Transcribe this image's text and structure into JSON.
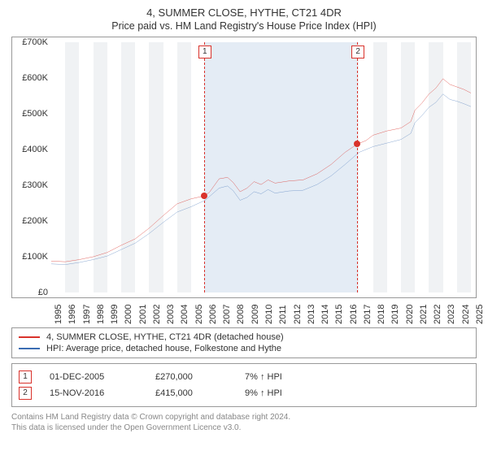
{
  "title": "4, SUMMER CLOSE, HYTHE, CT21 4DR",
  "subtitle": "Price paid vs. HM Land Registry's House Price Index (HPI)",
  "chart": {
    "type": "line",
    "background_color": "#ffffff",
    "grid_stripe_color": "#f0f2f4",
    "shade_color": "#e4ecf5",
    "ylim": [
      0,
      700000
    ],
    "ytick_step": 100000,
    "yticklabels": [
      "£0",
      "£100K",
      "£200K",
      "£300K",
      "£400K",
      "£500K",
      "£600K",
      "£700K"
    ],
    "x_years": [
      1995,
      1996,
      1997,
      1998,
      1999,
      2000,
      2001,
      2002,
      2003,
      2004,
      2005,
      2006,
      2007,
      2008,
      2009,
      2010,
      2011,
      2012,
      2013,
      2014,
      2015,
      2016,
      2017,
      2018,
      2019,
      2020,
      2021,
      2022,
      2023,
      2024,
      2025
    ],
    "xlim": [
      1995,
      2025
    ],
    "series": [
      {
        "name": "price_paid",
        "label": "4, SUMMER CLOSE, HYTHE, CT21 4DR (detached house)",
        "color": "#d9322b",
        "line_width": 1.5,
        "points": [
          [
            1995,
            88000
          ],
          [
            1996,
            86000
          ],
          [
            1997,
            92000
          ],
          [
            1998,
            100000
          ],
          [
            1999,
            112000
          ],
          [
            2000,
            132000
          ],
          [
            2001,
            150000
          ],
          [
            2002,
            180000
          ],
          [
            2003,
            215000
          ],
          [
            2004,
            248000
          ],
          [
            2005,
            262000
          ],
          [
            2005.92,
            270000
          ],
          [
            2006.3,
            280000
          ],
          [
            2007,
            318000
          ],
          [
            2007.6,
            322000
          ],
          [
            2008,
            308000
          ],
          [
            2008.5,
            282000
          ],
          [
            2009,
            292000
          ],
          [
            2009.5,
            310000
          ],
          [
            2010,
            302000
          ],
          [
            2010.5,
            315000
          ],
          [
            2011,
            306000
          ],
          [
            2012,
            312000
          ],
          [
            2013,
            315000
          ],
          [
            2014,
            332000
          ],
          [
            2015,
            358000
          ],
          [
            2016,
            392000
          ],
          [
            2016.87,
            415000
          ],
          [
            2017.5,
            425000
          ],
          [
            2018,
            440000
          ],
          [
            2019,
            452000
          ],
          [
            2020,
            460000
          ],
          [
            2020.7,
            478000
          ],
          [
            2021,
            510000
          ],
          [
            2021.5,
            530000
          ],
          [
            2022,
            555000
          ],
          [
            2022.5,
            572000
          ],
          [
            2023,
            598000
          ],
          [
            2023.5,
            582000
          ],
          [
            2024,
            575000
          ],
          [
            2024.5,
            568000
          ],
          [
            2025,
            558000
          ]
        ]
      },
      {
        "name": "hpi",
        "label": "HPI: Average price, detached house, Folkestone and Hythe",
        "color": "#3b6db3",
        "line_width": 1.2,
        "points": [
          [
            1995,
            80000
          ],
          [
            1996,
            78000
          ],
          [
            1997,
            84000
          ],
          [
            1998,
            92000
          ],
          [
            1999,
            102000
          ],
          [
            2000,
            120000
          ],
          [
            2001,
            138000
          ],
          [
            2002,
            165000
          ],
          [
            2003,
            196000
          ],
          [
            2004,
            225000
          ],
          [
            2005,
            240000
          ],
          [
            2006,
            258000
          ],
          [
            2007,
            292000
          ],
          [
            2007.6,
            298000
          ],
          [
            2008,
            285000
          ],
          [
            2008.5,
            258000
          ],
          [
            2009,
            266000
          ],
          [
            2009.5,
            282000
          ],
          [
            2010,
            276000
          ],
          [
            2010.5,
            288000
          ],
          [
            2011,
            278000
          ],
          [
            2012,
            284000
          ],
          [
            2013,
            286000
          ],
          [
            2014,
            302000
          ],
          [
            2015,
            326000
          ],
          [
            2016,
            358000
          ],
          [
            2017,
            392000
          ],
          [
            2018,
            408000
          ],
          [
            2019,
            418000
          ],
          [
            2020,
            428000
          ],
          [
            2020.7,
            445000
          ],
          [
            2021,
            475000
          ],
          [
            2021.5,
            495000
          ],
          [
            2022,
            518000
          ],
          [
            2022.5,
            532000
          ],
          [
            2023,
            555000
          ],
          [
            2023.5,
            540000
          ],
          [
            2024,
            535000
          ],
          [
            2024.5,
            528000
          ],
          [
            2025,
            520000
          ]
        ]
      }
    ],
    "shade_range": [
      2005.92,
      2016.87
    ],
    "markers": [
      {
        "n": "1",
        "x": 2005.92,
        "y": 270000
      },
      {
        "n": "2",
        "x": 2016.87,
        "y": 415000
      }
    ],
    "axis_fontsize": 11,
    "title_fontsize": 13
  },
  "legend": {
    "items": [
      {
        "color": "#d9322b",
        "label": "4, SUMMER CLOSE, HYTHE, CT21 4DR (detached house)"
      },
      {
        "color": "#3b6db3",
        "label": "HPI: Average price, detached house, Folkestone and Hythe"
      }
    ]
  },
  "sales": [
    {
      "n": "1",
      "date": "01-DEC-2005",
      "price": "£270,000",
      "pct": "7% ↑ HPI"
    },
    {
      "n": "2",
      "date": "15-NOV-2016",
      "price": "£415,000",
      "pct": "9% ↑ HPI"
    }
  ],
  "footer": {
    "line1": "Contains HM Land Registry data © Crown copyright and database right 2024.",
    "line2": "This data is licensed under the Open Government Licence v3.0."
  }
}
